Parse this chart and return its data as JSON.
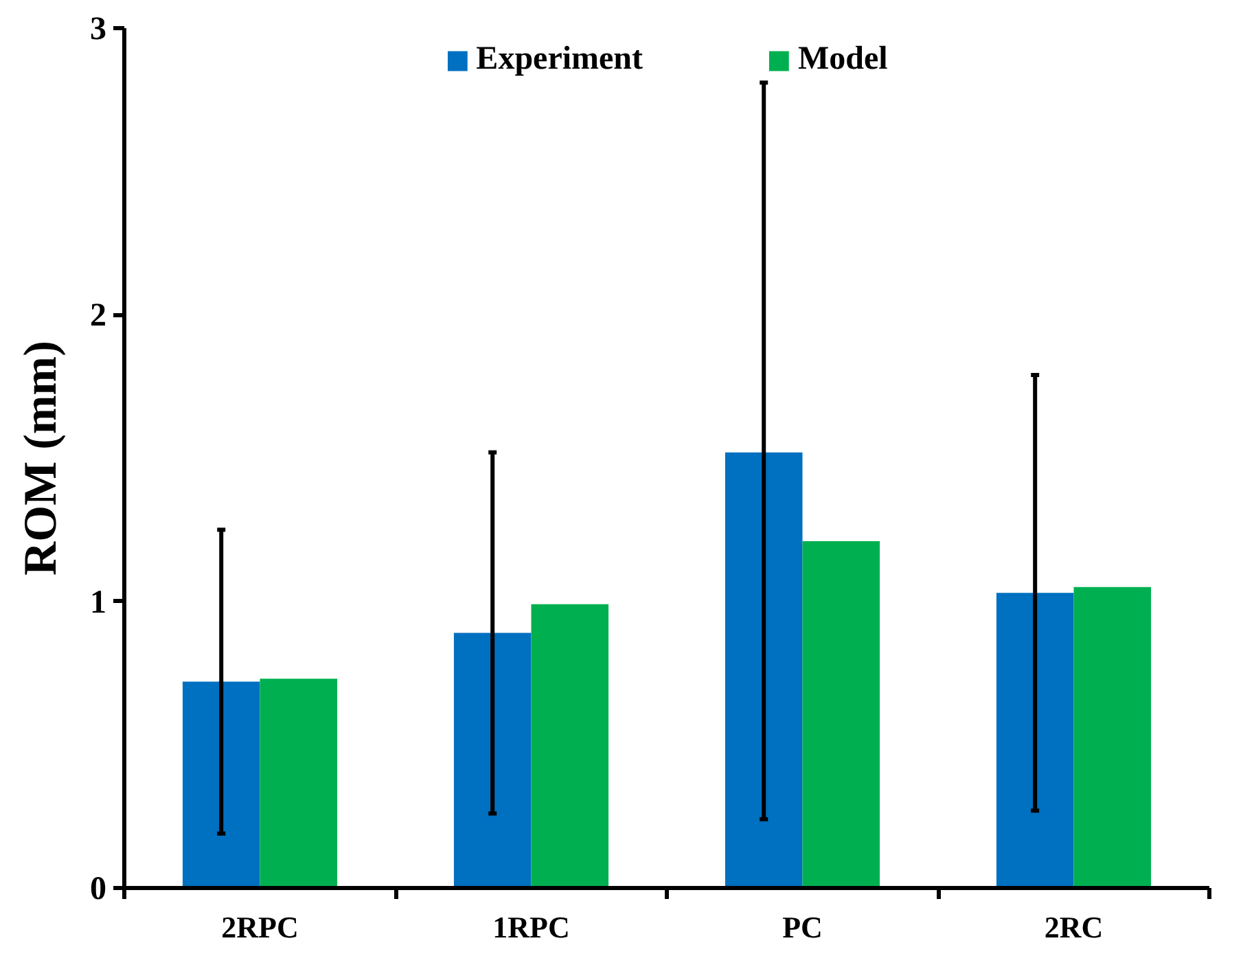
{
  "chart_data": {
    "type": "bar",
    "ylabel": "ROM (mm)",
    "categories": [
      "2RPC",
      "1RPC",
      "PC",
      "2RC"
    ],
    "series": [
      {
        "name": "Experiment",
        "color": "#0070c0",
        "values": [
          0.72,
          0.89,
          1.52,
          1.03
        ],
        "errors": [
          [
            0.19,
            1.25
          ],
          [
            0.26,
            1.52
          ],
          [
            0.24,
            2.81
          ],
          [
            0.27,
            1.79
          ]
        ]
      },
      {
        "name": "Model",
        "color": "#00b050",
        "values": [
          0.73,
          0.99,
          1.21,
          1.05
        ]
      }
    ],
    "ylim": [
      0,
      3
    ],
    "yticks": [
      0,
      1,
      2,
      3
    ],
    "grid": false,
    "legend": "top"
  }
}
